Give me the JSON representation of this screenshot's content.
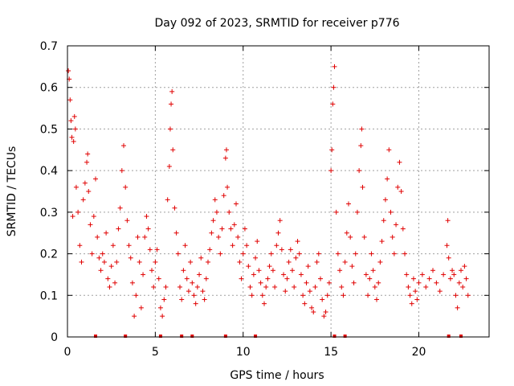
{
  "chart_data": {
    "type": "scatter",
    "title": "Day 092 of 2023, SRMTID for receiver p776",
    "xlabel": "GPS time / hours",
    "ylabel": "SRMTID / TECUs",
    "xlim": [
      0,
      24
    ],
    "ylim": [
      0,
      0.7
    ],
    "x_ticks": [
      "0",
      "5",
      "10",
      "15",
      "20"
    ],
    "y_ticks": [
      "0",
      "0.1",
      "0.2",
      "0.3",
      "0.4",
      "0.5",
      "0.6",
      "0.7"
    ],
    "grid": true,
    "marker": "+",
    "color": "#e00000",
    "series": [
      {
        "name": "SRMTID",
        "points": [
          [
            0.05,
            0.64
          ],
          [
            0.1,
            0.62
          ],
          [
            0.15,
            0.57
          ],
          [
            0.2,
            0.52
          ],
          [
            0.25,
            0.48
          ],
          [
            0.3,
            0.29
          ],
          [
            0.35,
            0.47
          ],
          [
            0.4,
            0.53
          ],
          [
            0.45,
            0.5
          ],
          [
            0.5,
            0.36
          ],
          [
            0.6,
            0.3
          ],
          [
            0.7,
            0.22
          ],
          [
            0.8,
            0.18
          ],
          [
            0.9,
            0.33
          ],
          [
            1.0,
            0.37
          ],
          [
            1.1,
            0.42
          ],
          [
            1.15,
            0.44
          ],
          [
            1.2,
            0.35
          ],
          [
            1.3,
            0.27
          ],
          [
            1.4,
            0.2
          ],
          [
            1.5,
            0.29
          ],
          [
            1.6,
            0.38
          ],
          [
            1.7,
            0.24
          ],
          [
            1.8,
            0.19
          ],
          [
            1.9,
            0.16
          ],
          [
            2.0,
            0.2
          ],
          [
            2.1,
            0.18
          ],
          [
            2.2,
            0.25
          ],
          [
            2.3,
            0.14
          ],
          [
            2.4,
            0.12
          ],
          [
            2.5,
            0.17
          ],
          [
            2.6,
            0.22
          ],
          [
            2.7,
            0.13
          ],
          [
            2.8,
            0.18
          ],
          [
            2.9,
            0.26
          ],
          [
            3.0,
            0.31
          ],
          [
            3.1,
            0.4
          ],
          [
            3.2,
            0.46
          ],
          [
            3.3,
            0.36
          ],
          [
            3.4,
            0.28
          ],
          [
            3.5,
            0.22
          ],
          [
            3.6,
            0.19
          ],
          [
            3.7,
            0.13
          ],
          [
            3.8,
            0.05
          ],
          [
            3.9,
            0.1
          ],
          [
            4.0,
            0.24
          ],
          [
            4.1,
            0.18
          ],
          [
            4.2,
            0.07
          ],
          [
            4.3,
            0.15
          ],
          [
            4.4,
            0.24
          ],
          [
            4.5,
            0.29
          ],
          [
            4.6,
            0.26
          ],
          [
            4.7,
            0.21
          ],
          [
            4.8,
            0.16
          ],
          [
            4.9,
            0.12
          ],
          [
            5.0,
            0.18
          ],
          [
            5.1,
            0.21
          ],
          [
            5.2,
            0.14
          ],
          [
            5.3,
            0.07
          ],
          [
            5.4,
            0.05
          ],
          [
            5.5,
            0.09
          ],
          [
            5.6,
            0.12
          ],
          [
            5.7,
            0.33
          ],
          [
            5.8,
            0.41
          ],
          [
            5.85,
            0.5
          ],
          [
            5.9,
            0.56
          ],
          [
            5.95,
            0.59
          ],
          [
            6.0,
            0.45
          ],
          [
            6.1,
            0.31
          ],
          [
            6.2,
            0.25
          ],
          [
            6.3,
            0.2
          ],
          [
            6.4,
            0.12
          ],
          [
            6.5,
            0.09
          ],
          [
            6.6,
            0.16
          ],
          [
            6.7,
            0.22
          ],
          [
            6.8,
            0.14
          ],
          [
            6.9,
            0.11
          ],
          [
            7.0,
            0.18
          ],
          [
            7.1,
            0.13
          ],
          [
            7.2,
            0.1
          ],
          [
            7.3,
            0.08
          ],
          [
            7.4,
            0.12
          ],
          [
            7.5,
            0.15
          ],
          [
            7.6,
            0.19
          ],
          [
            7.7,
            0.11
          ],
          [
            7.8,
            0.09
          ],
          [
            7.9,
            0.14
          ],
          [
            8.0,
            0.18
          ],
          [
            8.1,
            0.21
          ],
          [
            8.2,
            0.25
          ],
          [
            8.3,
            0.28
          ],
          [
            8.4,
            0.33
          ],
          [
            8.5,
            0.3
          ],
          [
            8.6,
            0.24
          ],
          [
            8.7,
            0.2
          ],
          [
            8.8,
            0.26
          ],
          [
            8.9,
            0.34
          ],
          [
            9.0,
            0.43
          ],
          [
            9.05,
            0.45
          ],
          [
            9.1,
            0.36
          ],
          [
            9.2,
            0.3
          ],
          [
            9.3,
            0.26
          ],
          [
            9.4,
            0.22
          ],
          [
            9.5,
            0.27
          ],
          [
            9.6,
            0.32
          ],
          [
            9.7,
            0.24
          ],
          [
            9.8,
            0.18
          ],
          [
            9.9,
            0.14
          ],
          [
            10.0,
            0.2
          ],
          [
            10.1,
            0.26
          ],
          [
            10.2,
            0.22
          ],
          [
            10.3,
            0.17
          ],
          [
            10.4,
            0.12
          ],
          [
            10.5,
            0.1
          ],
          [
            10.6,
            0.15
          ],
          [
            10.7,
            0.19
          ],
          [
            10.8,
            0.23
          ],
          [
            10.9,
            0.16
          ],
          [
            11.0,
            0.13
          ],
          [
            11.1,
            0.1
          ],
          [
            11.2,
            0.08
          ],
          [
            11.3,
            0.12
          ],
          [
            11.4,
            0.14
          ],
          [
            11.5,
            0.17
          ],
          [
            11.6,
            0.2
          ],
          [
            11.7,
            0.16
          ],
          [
            11.8,
            0.12
          ],
          [
            11.9,
            0.22
          ],
          [
            12.0,
            0.25
          ],
          [
            12.1,
            0.28
          ],
          [
            12.2,
            0.21
          ],
          [
            12.3,
            0.15
          ],
          [
            12.4,
            0.11
          ],
          [
            12.5,
            0.14
          ],
          [
            12.6,
            0.18
          ],
          [
            12.7,
            0.21
          ],
          [
            12.8,
            0.16
          ],
          [
            12.9,
            0.12
          ],
          [
            13.0,
            0.19
          ],
          [
            13.1,
            0.23
          ],
          [
            13.2,
            0.2
          ],
          [
            13.3,
            0.15
          ],
          [
            13.4,
            0.1
          ],
          [
            13.5,
            0.08
          ],
          [
            13.6,
            0.13
          ],
          [
            13.7,
            0.17
          ],
          [
            13.8,
            0.11
          ],
          [
            13.9,
            0.07
          ],
          [
            14.0,
            0.06
          ],
          [
            14.1,
            0.12
          ],
          [
            14.2,
            0.18
          ],
          [
            14.3,
            0.2
          ],
          [
            14.4,
            0.14
          ],
          [
            14.5,
            0.09
          ],
          [
            14.6,
            0.05
          ],
          [
            14.7,
            0.06
          ],
          [
            14.8,
            0.1
          ],
          [
            14.9,
            0.13
          ],
          [
            15.0,
            0.4
          ],
          [
            15.05,
            0.45
          ],
          [
            15.1,
            0.56
          ],
          [
            15.15,
            0.6
          ],
          [
            15.2,
            0.65
          ],
          [
            15.3,
            0.3
          ],
          [
            15.4,
            0.2
          ],
          [
            15.5,
            0.16
          ],
          [
            15.6,
            0.12
          ],
          [
            15.7,
            0.1
          ],
          [
            15.8,
            0.18
          ],
          [
            15.9,
            0.25
          ],
          [
            16.0,
            0.32
          ],
          [
            16.1,
            0.24
          ],
          [
            16.2,
            0.17
          ],
          [
            16.3,
            0.13
          ],
          [
            16.4,
            0.2
          ],
          [
            16.5,
            0.3
          ],
          [
            16.6,
            0.4
          ],
          [
            16.7,
            0.46
          ],
          [
            16.75,
            0.5
          ],
          [
            16.8,
            0.36
          ],
          [
            16.9,
            0.24
          ],
          [
            17.0,
            0.15
          ],
          [
            17.1,
            0.1
          ],
          [
            17.2,
            0.14
          ],
          [
            17.3,
            0.2
          ],
          [
            17.4,
            0.16
          ],
          [
            17.5,
            0.12
          ],
          [
            17.6,
            0.09
          ],
          [
            17.7,
            0.13
          ],
          [
            17.8,
            0.18
          ],
          [
            17.9,
            0.23
          ],
          [
            18.0,
            0.28
          ],
          [
            18.1,
            0.33
          ],
          [
            18.2,
            0.38
          ],
          [
            18.3,
            0.45
          ],
          [
            18.4,
            0.3
          ],
          [
            18.5,
            0.24
          ],
          [
            18.6,
            0.2
          ],
          [
            18.7,
            0.27
          ],
          [
            18.8,
            0.36
          ],
          [
            18.9,
            0.42
          ],
          [
            19.0,
            0.35
          ],
          [
            19.1,
            0.26
          ],
          [
            19.2,
            0.2
          ],
          [
            19.3,
            0.15
          ],
          [
            19.4,
            0.12
          ],
          [
            19.5,
            0.1
          ],
          [
            19.6,
            0.08
          ],
          [
            19.7,
            0.14
          ],
          [
            19.8,
            0.11
          ],
          [
            19.9,
            0.09
          ],
          [
            20.0,
            0.13
          ],
          [
            20.2,
            0.15
          ],
          [
            20.4,
            0.12
          ],
          [
            20.6,
            0.14
          ],
          [
            20.8,
            0.16
          ],
          [
            21.0,
            0.13
          ],
          [
            21.2,
            0.11
          ],
          [
            21.4,
            0.15
          ],
          [
            21.6,
            0.22
          ],
          [
            21.65,
            0.28
          ],
          [
            21.7,
            0.19
          ],
          [
            21.8,
            0.14
          ],
          [
            21.9,
            0.16
          ],
          [
            22.0,
            0.15
          ],
          [
            22.1,
            0.1
          ],
          [
            22.2,
            0.07
          ],
          [
            22.3,
            0.13
          ],
          [
            22.4,
            0.16
          ],
          [
            22.5,
            0.12
          ],
          [
            22.6,
            0.17
          ],
          [
            22.7,
            0.14
          ],
          [
            22.8,
            0.1
          ]
        ]
      }
    ],
    "rug_x": [
      1.6,
      3.3,
      5.3,
      6.5,
      7.1,
      9.0,
      10.7,
      15.2,
      15.8,
      21.7,
      22.4
    ]
  }
}
